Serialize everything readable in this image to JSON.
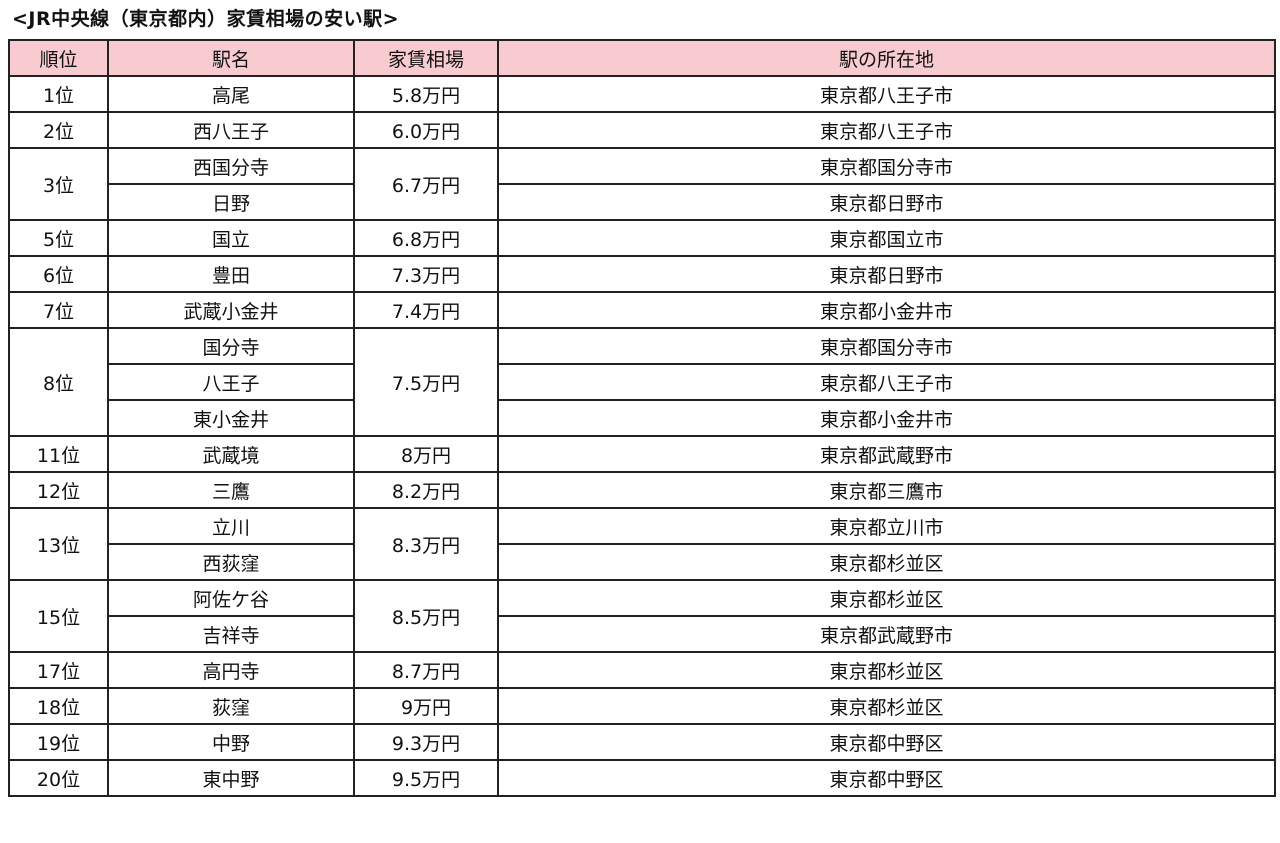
{
  "title": "<JR中央線（東京都内）家賃相場の安い駅>",
  "header_color": "#f7cbcf",
  "columns": [
    "順位",
    "駅名",
    "家賃相場",
    "駅の所在地"
  ],
  "groups": [
    {
      "rank": "1位",
      "price": "5.8万円",
      "stations": [
        {
          "name": "高尾",
          "location": "東京都八王子市"
        }
      ]
    },
    {
      "rank": "2位",
      "price": "6.0万円",
      "stations": [
        {
          "name": "西八王子",
          "location": "東京都八王子市"
        }
      ]
    },
    {
      "rank": "3位",
      "price": "6.7万円",
      "stations": [
        {
          "name": "西国分寺",
          "location": "東京都国分寺市"
        },
        {
          "name": "日野",
          "location": "東京都日野市"
        }
      ]
    },
    {
      "rank": "5位",
      "price": "6.8万円",
      "stations": [
        {
          "name": "国立",
          "location": "東京都国立市"
        }
      ]
    },
    {
      "rank": "6位",
      "price": "7.3万円",
      "stations": [
        {
          "name": "豊田",
          "location": "東京都日野市"
        }
      ]
    },
    {
      "rank": "7位",
      "price": "7.4万円",
      "stations": [
        {
          "name": "武蔵小金井",
          "location": "東京都小金井市"
        }
      ]
    },
    {
      "rank": "8位",
      "price": "7.5万円",
      "stations": [
        {
          "name": "国分寺",
          "location": "東京都国分寺市"
        },
        {
          "name": "八王子",
          "location": "東京都八王子市"
        },
        {
          "name": "東小金井",
          "location": "東京都小金井市"
        }
      ]
    },
    {
      "rank": "11位",
      "price": "8万円",
      "stations": [
        {
          "name": "武蔵境",
          "location": "東京都武蔵野市"
        }
      ]
    },
    {
      "rank": "12位",
      "price": "8.2万円",
      "stations": [
        {
          "name": "三鷹",
          "location": "東京都三鷹市"
        }
      ]
    },
    {
      "rank": "13位",
      "price": "8.3万円",
      "stations": [
        {
          "name": "立川",
          "location": "東京都立川市"
        },
        {
          "name": "西荻窪",
          "location": "東京都杉並区"
        }
      ]
    },
    {
      "rank": "15位",
      "price": "8.5万円",
      "stations": [
        {
          "name": "阿佐ケ谷",
          "location": "東京都杉並区"
        },
        {
          "name": "吉祥寺",
          "location": "東京都武蔵野市"
        }
      ]
    },
    {
      "rank": "17位",
      "price": "8.7万円",
      "stations": [
        {
          "name": "高円寺",
          "location": "東京都杉並区"
        }
      ]
    },
    {
      "rank": "18位",
      "price": "9万円",
      "stations": [
        {
          "name": "荻窪",
          "location": "東京都杉並区"
        }
      ]
    },
    {
      "rank": "19位",
      "price": "9.3万円",
      "stations": [
        {
          "name": "中野",
          "location": "東京都中野区"
        }
      ]
    },
    {
      "rank": "20位",
      "price": "9.5万円",
      "stations": [
        {
          "name": "東中野",
          "location": "東京都中野区"
        }
      ]
    }
  ]
}
